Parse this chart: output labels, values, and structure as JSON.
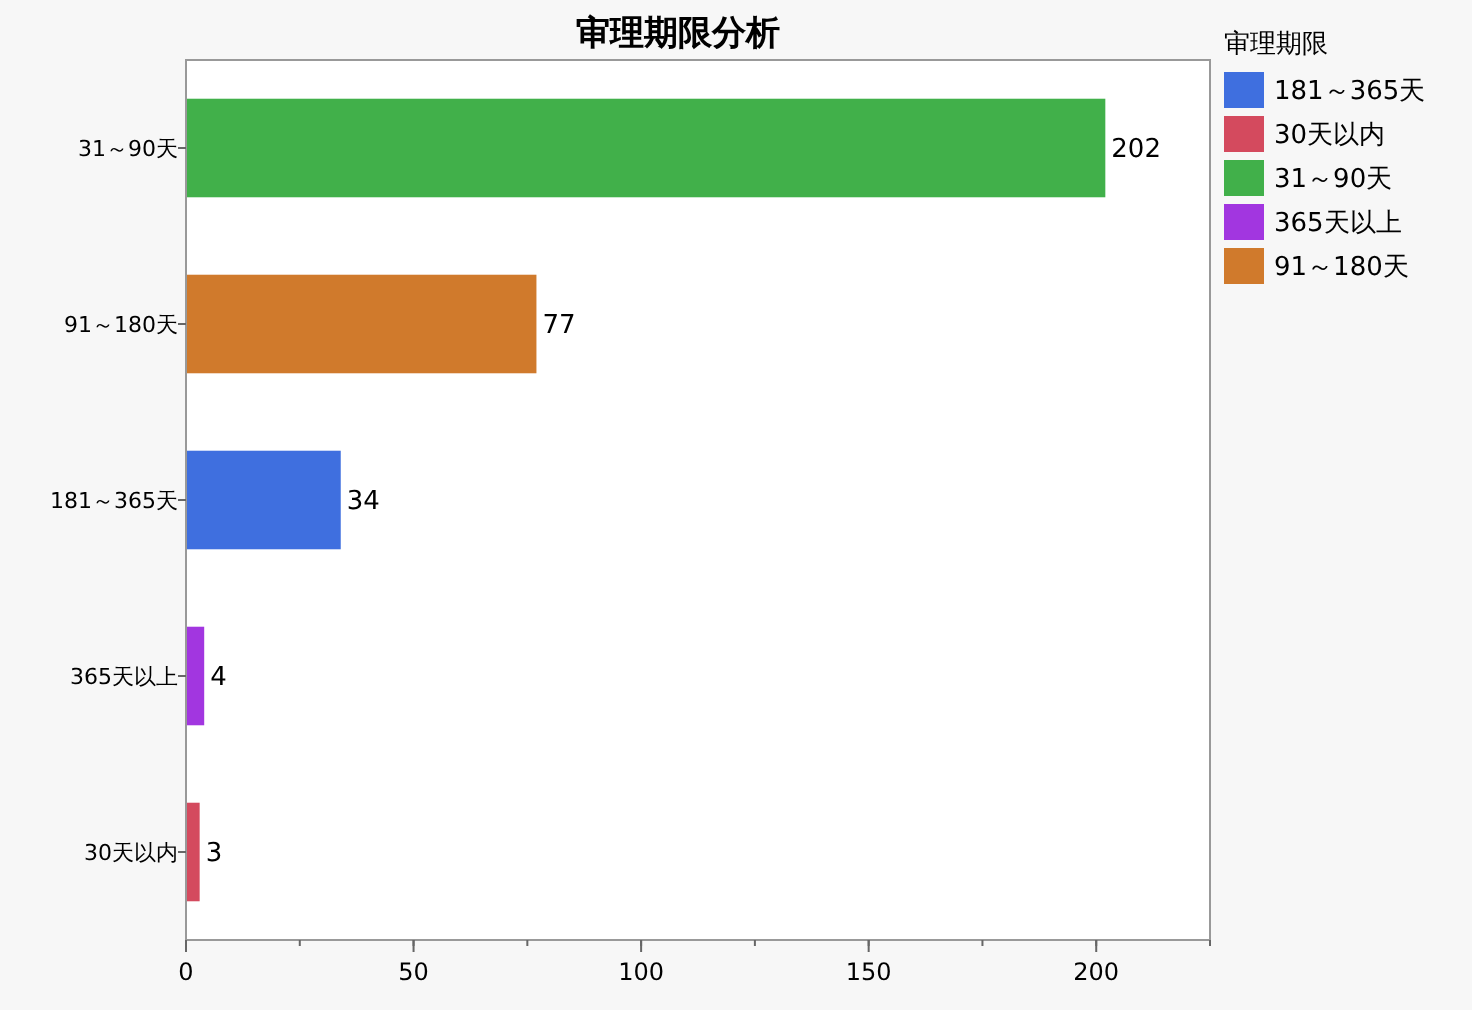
{
  "chart_data": {
    "type": "bar",
    "orientation": "horizontal",
    "title": "审理期限分析",
    "legend_title": "审理期限",
    "legend": "right",
    "data_labels": true,
    "grid": false,
    "categories": [
      "31～90天",
      "91～180天",
      "181～365天",
      "365天以上",
      "30天以内"
    ],
    "xlim": [
      0,
      225
    ],
    "xticks": [
      0,
      50,
      100,
      150,
      200
    ],
    "series": [
      {
        "name": "181～365天",
        "color": "#3f6fdf",
        "values": [
          null,
          null,
          34,
          null,
          null
        ]
      },
      {
        "name": "30天以内",
        "color": "#d44a5e",
        "values": [
          null,
          null,
          null,
          null,
          3
        ]
      },
      {
        "name": "31～90天",
        "color": "#41b04a",
        "values": [
          202,
          null,
          null,
          null,
          null
        ]
      },
      {
        "name": "365天以上",
        "color": "#a236e0",
        "values": [
          null,
          null,
          null,
          4,
          null
        ]
      },
      {
        "name": "91～180天",
        "color": "#d07a2c",
        "values": [
          null,
          77,
          null,
          null,
          null
        ]
      }
    ]
  }
}
